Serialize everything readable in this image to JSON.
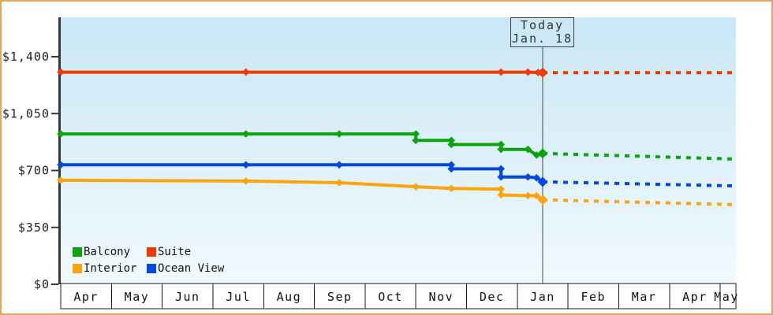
{
  "frame": {
    "border_color": "#E8A55C",
    "plot_bg_top": "#C9E7F5",
    "plot_bg_bottom": "#F1FAFE",
    "axis_color": "#383838",
    "band_border_color": "#1a1a1a",
    "text_color": "#222222"
  },
  "chart_data": {
    "type": "line",
    "title": "",
    "xlabel": "",
    "ylabel": "",
    "x_axis": {
      "months": [
        "Apr",
        "May",
        "Jun",
        "Jul",
        "Aug",
        "Sep",
        "Oct",
        "Nov",
        "Dec",
        "Jan",
        "Feb",
        "Mar",
        "Apr",
        "May"
      ],
      "note": "month index 0 = Apr; fractional index = position within month"
    },
    "y_axis": {
      "ticks": [
        {
          "label": "$0",
          "value": 0
        },
        {
          "label": "$350",
          "value": 350
        },
        {
          "label": "$700",
          "value": 700
        },
        {
          "label": "$1,050",
          "value": 1050
        },
        {
          "label": "$1,400",
          "value": 1400
        }
      ],
      "ylim": [
        0,
        1400
      ]
    },
    "today": {
      "title": "Today",
      "date": "Jan. 18",
      "index": 9.5
    },
    "forecast_end_index": 13.3,
    "series": [
      {
        "name": "Suite",
        "color": "#F23A00",
        "solid": [
          [
            0,
            1305
          ],
          [
            8.68,
            1305
          ],
          [
            9.21,
            1305
          ],
          [
            9.5,
            1302
          ]
        ],
        "markers": [
          [
            0,
            1305
          ],
          [
            3.65,
            1305
          ],
          [
            8.68,
            1305
          ],
          [
            9.21,
            1305
          ],
          [
            9.41,
            1303
          ],
          [
            9.5,
            1302
          ]
        ],
        "forecast": [
          [
            9.5,
            1302
          ],
          [
            13.3,
            1302
          ]
        ]
      },
      {
        "name": "Balcony",
        "color": "#0CA30C",
        "solid": [
          [
            0,
            925
          ],
          [
            7.0,
            925
          ],
          [
            7.0,
            885
          ],
          [
            7.7,
            885
          ],
          [
            7.7,
            860
          ],
          [
            8.68,
            860
          ],
          [
            8.68,
            830
          ],
          [
            9.21,
            830
          ],
          [
            9.38,
            795
          ],
          [
            9.5,
            805
          ]
        ],
        "markers": [
          [
            0,
            925
          ],
          [
            3.65,
            925
          ],
          [
            5.49,
            925
          ],
          [
            7.0,
            925
          ],
          [
            7.0,
            885
          ],
          [
            7.7,
            885
          ],
          [
            7.7,
            860
          ],
          [
            8.68,
            860
          ],
          [
            8.68,
            830
          ],
          [
            9.21,
            830
          ],
          [
            9.38,
            795
          ],
          [
            9.5,
            805
          ]
        ],
        "forecast": [
          [
            9.5,
            805
          ],
          [
            13.3,
            770
          ]
        ]
      },
      {
        "name": "Ocean View",
        "color": "#0647E0",
        "solid": [
          [
            0,
            735
          ],
          [
            7.7,
            735
          ],
          [
            7.7,
            710
          ],
          [
            8.68,
            710
          ],
          [
            8.68,
            660
          ],
          [
            9.21,
            660
          ],
          [
            9.38,
            655
          ],
          [
            9.5,
            630
          ]
        ],
        "markers": [
          [
            0,
            735
          ],
          [
            3.65,
            735
          ],
          [
            5.49,
            735
          ],
          [
            7.7,
            735
          ],
          [
            7.7,
            710
          ],
          [
            8.68,
            710
          ],
          [
            8.68,
            660
          ],
          [
            9.21,
            660
          ],
          [
            9.38,
            655
          ],
          [
            9.5,
            630
          ]
        ],
        "forecast": [
          [
            9.5,
            630
          ],
          [
            13.3,
            605
          ]
        ]
      },
      {
        "name": "Interior",
        "color": "#FBA40B",
        "solid": [
          [
            0,
            640
          ],
          [
            3.65,
            635
          ],
          [
            5.49,
            625
          ],
          [
            7.0,
            600
          ],
          [
            7.7,
            590
          ],
          [
            8.68,
            585
          ],
          [
            8.68,
            550
          ],
          [
            9.21,
            545
          ],
          [
            9.38,
            545
          ],
          [
            9.5,
            520
          ]
        ],
        "markers": [
          [
            0,
            640
          ],
          [
            3.65,
            635
          ],
          [
            5.49,
            625
          ],
          [
            7.0,
            600
          ],
          [
            7.7,
            590
          ],
          [
            8.68,
            585
          ],
          [
            8.68,
            550
          ],
          [
            9.21,
            545
          ],
          [
            9.38,
            545
          ],
          [
            9.5,
            520
          ]
        ],
        "forecast": [
          [
            9.5,
            520
          ],
          [
            13.3,
            490
          ]
        ]
      }
    ]
  },
  "legend": {
    "items": [
      {
        "label": "Balcony",
        "color": "#0CA30C"
      },
      {
        "label": "Suite",
        "color": "#F23A00"
      },
      {
        "label": "Interior",
        "color": "#FBA40B"
      },
      {
        "label": "Ocean View",
        "color": "#0647E0"
      }
    ]
  }
}
